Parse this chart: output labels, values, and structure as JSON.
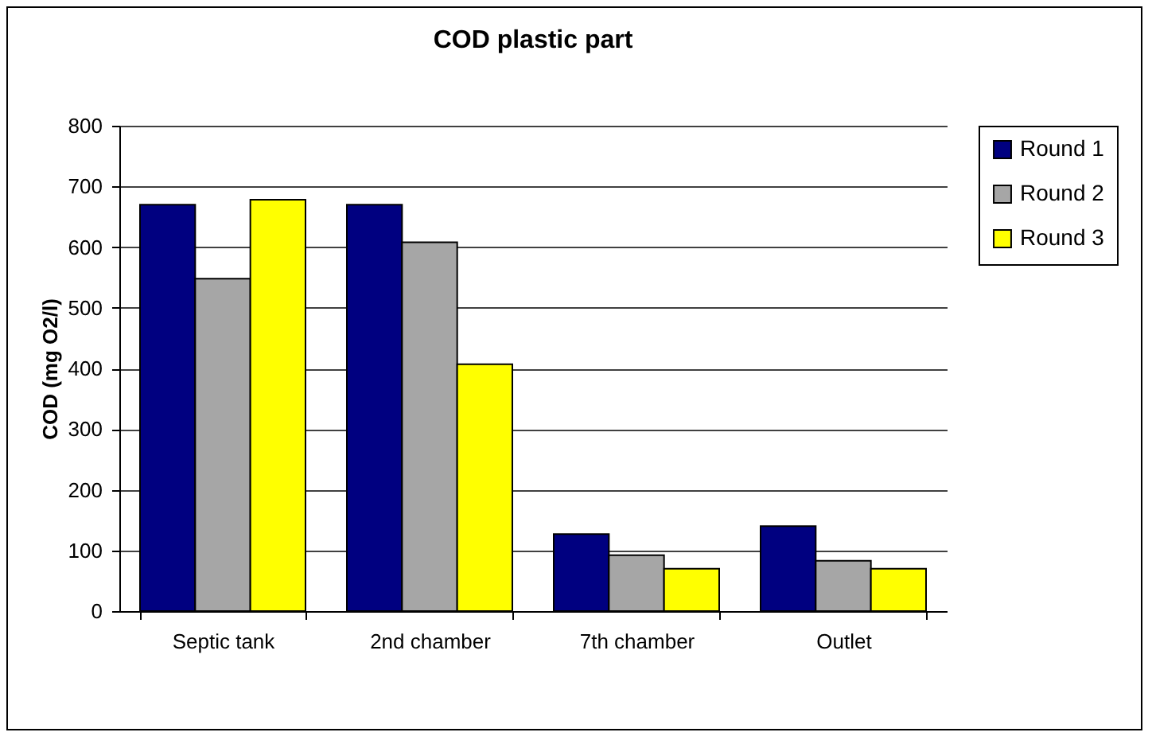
{
  "chart_data": {
    "type": "bar",
    "title": "COD plastic part",
    "ylabel": "COD (mg O2/l)",
    "categories": [
      "Septic tank",
      "2nd chamber",
      "7th chamber",
      "Outlet"
    ],
    "series": [
      {
        "name": "Round 1",
        "color": "#000080",
        "values": [
          670,
          670,
          127,
          140
        ]
      },
      {
        "name": "Round 2",
        "color": "#a6a6a6",
        "values": [
          548,
          608,
          92,
          83
        ]
      },
      {
        "name": "Round 3",
        "color": "#ffff00",
        "values": [
          678,
          407,
          70,
          70
        ]
      }
    ],
    "ylim": [
      0,
      800
    ],
    "yticks": [
      0,
      100,
      200,
      300,
      400,
      500,
      600,
      700,
      800
    ],
    "grid": "y",
    "legend": "right"
  }
}
